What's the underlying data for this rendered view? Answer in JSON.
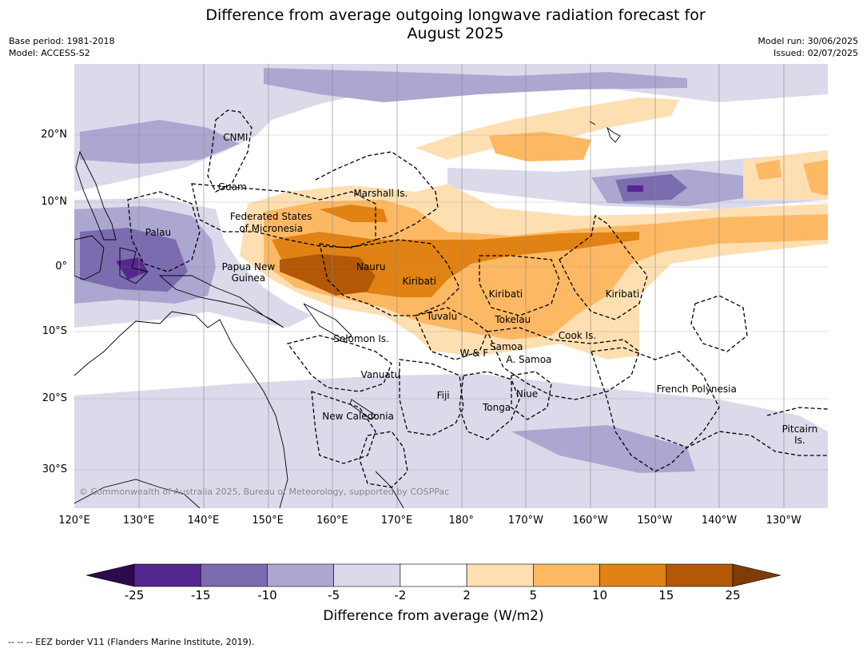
{
  "header": {
    "title_line1": "Difference from average outgoing longwave radiation forecast for",
    "title_line2": "August 2025",
    "base_period": "Base period: 1981-2018",
    "model": "Model: ACCESS-S2",
    "model_run": "Model run: 30/06/2025",
    "issued": "Issued: 02/07/2025"
  },
  "map": {
    "lon_labels": [
      "120°E",
      "130°E",
      "140°E",
      "150°E",
      "160°E",
      "170°E",
      "180°",
      "170°W",
      "160°W",
      "150°W",
      "140°W",
      "130°W"
    ],
    "lat_labels": [
      "20°N",
      "10°N",
      "0°",
      "10°S",
      "20°S",
      "30°S"
    ],
    "copyright": "© Commonwealth of Australia 2025, Bureau of Meteorology, supported by COSPPac",
    "places": [
      {
        "name": "CNMI",
        "lon": 145.0,
        "lat": 19.8
      },
      {
        "name": "Guam",
        "lon": 144.5,
        "lat": 12.2
      },
      {
        "name": "Marshall Is.",
        "lon": 167.5,
        "lat": 11.2
      },
      {
        "name": "Federated States",
        "lon": 150.5,
        "lat": 7.7
      },
      {
        "name": "of Micronesia",
        "lon": 150.5,
        "lat": 5.9
      },
      {
        "name": "Palau",
        "lon": 133.0,
        "lat": 5.2
      },
      {
        "name": "Papua New",
        "lon": 147.0,
        "lat": 0.0
      },
      {
        "name": "Guinea",
        "lon": 147.0,
        "lat": -1.7
      },
      {
        "name": "Nauru",
        "lon": 166.0,
        "lat": 0.0
      },
      {
        "name": "Kiribati",
        "lon": 173.5,
        "lat": -2.2
      },
      {
        "name": "Kiribati",
        "lon": -173.1,
        "lat": -4.2
      },
      {
        "name": "Kiribati",
        "lon": -155.0,
        "lat": -4.2
      },
      {
        "name": "Tuvalu",
        "lon": 177.0,
        "lat": -7.6
      },
      {
        "name": "Tokelau",
        "lon": -172.0,
        "lat": -8.0
      },
      {
        "name": "Cook Is.",
        "lon": -162.0,
        "lat": -10.5
      },
      {
        "name": "Solomon Is.",
        "lon": 164.5,
        "lat": -11.0
      },
      {
        "name": "Samoa",
        "lon": -173.0,
        "lat": -12.2
      },
      {
        "name": "W & F",
        "lon": -178.0,
        "lat": -13.2
      },
      {
        "name": "A. Samoa",
        "lon": -169.5,
        "lat": -14.2
      },
      {
        "name": "Vanuatu",
        "lon": 167.5,
        "lat": -16.5
      },
      {
        "name": "French Polynesia",
        "lon": -143.5,
        "lat": -18.7
      },
      {
        "name": "Fiji",
        "lon": 177.2,
        "lat": -19.6
      },
      {
        "name": "Niue",
        "lon": -169.8,
        "lat": -19.4
      },
      {
        "name": "Tonga",
        "lon": -174.5,
        "lat": -21.5
      },
      {
        "name": "New Caledonia",
        "lon": 164.0,
        "lat": -22.8
      },
      {
        "name": "Pitcairn",
        "lon": -127.5,
        "lat": -24.8
      },
      {
        "name": "Is.",
        "lon": -127.5,
        "lat": -26.5
      }
    ]
  },
  "colorbar": {
    "title": "Difference from average (W/m2)",
    "ticks": [
      "-25",
      "-15",
      "-10",
      "-5",
      "-2",
      "2",
      "5",
      "10",
      "15",
      "25"
    ],
    "colors": [
      "#2d0a4e",
      "#54278f",
      "#7b6baf",
      "#aba7d0",
      "#dadaeb",
      "#ffffff",
      "#fddfb2",
      "#fdb863",
      "#e08214",
      "#b35806",
      "#7f3b08"
    ]
  },
  "footnote": "--  --  -- EEZ border V11 (Flanders Marine Institute, 2019)."
}
